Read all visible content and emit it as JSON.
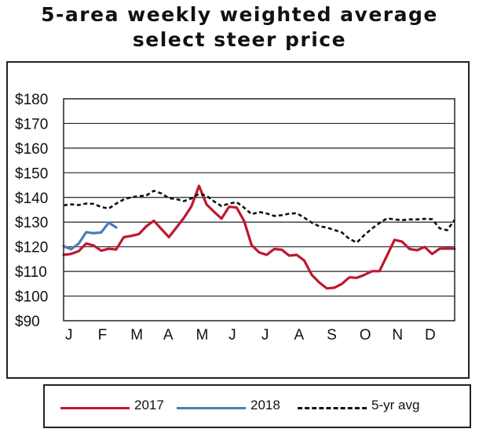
{
  "title_line1": "5-area weekly weighted average",
  "title_line2": "select steer price",
  "chart_data": {
    "type": "line",
    "title": "5-area weekly weighted average select steer price",
    "xlabel": "",
    "ylabel": "",
    "ylim": [
      90,
      180
    ],
    "y_ticks": [
      90,
      100,
      110,
      120,
      130,
      140,
      150,
      160,
      170,
      180
    ],
    "y_tick_labels": [
      "$90",
      "$100",
      "$110",
      "$120",
      "$130",
      "$140",
      "$150",
      "$160",
      "$170",
      "$180"
    ],
    "x_range": [
      0,
      52
    ],
    "x_unit": "week of year",
    "month_labels": [
      "J",
      "F",
      "M",
      "A",
      "M",
      "J",
      "J",
      "A",
      "S",
      "O",
      "N",
      "D"
    ],
    "grid": true,
    "legend_position": "bottom",
    "series": [
      {
        "name": "2017",
        "color": "#c0172e",
        "style": "solid",
        "x": [
          0,
          1,
          2,
          3,
          4,
          5,
          6,
          7,
          8,
          9,
          10,
          11,
          12,
          13,
          14,
          15,
          16,
          17,
          18,
          19,
          20,
          21,
          22,
          23,
          24,
          25,
          26,
          27,
          28,
          29,
          30,
          31,
          32,
          33,
          34,
          35,
          36,
          37,
          38,
          39,
          40,
          41,
          42,
          43,
          44,
          45,
          46,
          47,
          48,
          49,
          50,
          51,
          52
        ],
        "values": [
          116.7,
          117.1,
          118.2,
          121.3,
          120.5,
          118.4,
          119.2,
          118.9,
          123.9,
          124.4,
          125.1,
          128.3,
          130.5,
          127.2,
          123.9,
          127.8,
          131.7,
          136.4,
          144.7,
          137.2,
          134.2,
          131.4,
          136.2,
          135.9,
          130.5,
          120.7,
          117.7,
          116.7,
          119.1,
          118.8,
          116.4,
          116.7,
          114.4,
          108.6,
          105.5,
          103.1,
          103.4,
          104.9,
          107.6,
          107.4,
          108.6,
          110.1,
          110.1,
          116.4,
          122.8,
          122.1,
          119.1,
          118.6,
          119.9,
          117.1,
          119.2,
          119.3,
          119.2
        ]
      },
      {
        "name": "2018",
        "color": "#4a7eb5",
        "style": "solid",
        "x": [
          0,
          1,
          2,
          3,
          4,
          5,
          6,
          7
        ],
        "values": [
          120.2,
          119.0,
          121.3,
          125.9,
          125.5,
          125.8,
          129.8,
          127.8
        ]
      },
      {
        "name": "5-yr avg",
        "color": "#111111",
        "style": "dashed",
        "x": [
          0,
          1,
          2,
          3,
          4,
          5,
          6,
          7,
          8,
          9,
          10,
          11,
          12,
          13,
          14,
          15,
          16,
          17,
          18,
          19,
          20,
          21,
          22,
          23,
          24,
          25,
          26,
          27,
          28,
          29,
          30,
          31,
          32,
          33,
          34,
          35,
          36,
          37,
          38,
          39,
          40,
          41,
          42,
          43,
          44,
          45,
          46,
          47,
          48,
          49,
          50,
          51,
          52
        ],
        "values": [
          136.8,
          137.2,
          136.9,
          137.5,
          137.4,
          136.1,
          135.5,
          137.5,
          139.2,
          140.1,
          140.5,
          140.8,
          142.7,
          141.6,
          139.7,
          139.3,
          138.5,
          139.6,
          141.5,
          140.7,
          138.4,
          136.5,
          137.5,
          138.1,
          135.9,
          133.2,
          134.1,
          133.5,
          132.5,
          132.8,
          133.4,
          133.6,
          131.8,
          129.8,
          128.3,
          127.8,
          126.8,
          125.8,
          123.2,
          121.7,
          124.8,
          127.4,
          129.6,
          131.5,
          131.1,
          130.8,
          131.1,
          131.1,
          131.3,
          131.2,
          127.5,
          126.7,
          130.9
        ]
      }
    ]
  },
  "legend": [
    {
      "label": "2017",
      "color": "#c0172e",
      "style": "solid"
    },
    {
      "label": "2018",
      "color": "#4a7eb5",
      "style": "solid"
    },
    {
      "label": "5-yr avg",
      "color": "#111111",
      "style": "dashed"
    }
  ]
}
